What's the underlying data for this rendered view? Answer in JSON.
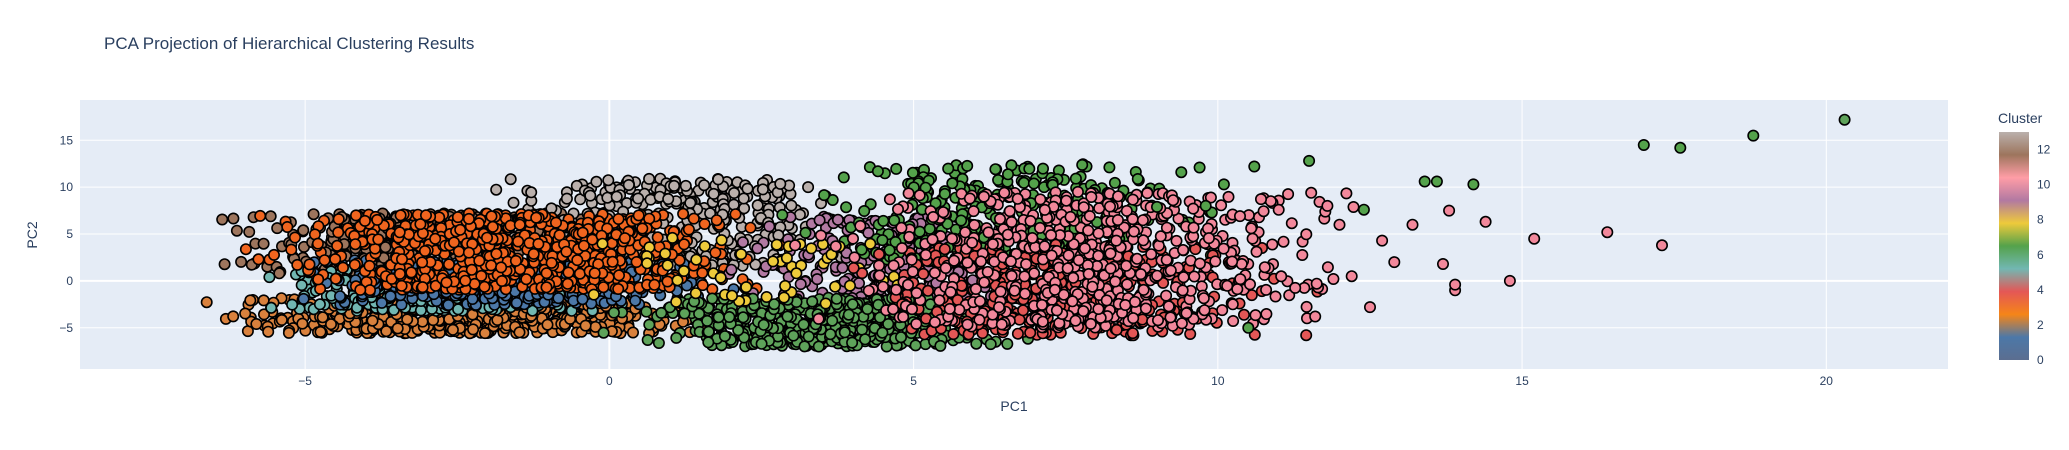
{
  "chart_data": {
    "type": "scatter",
    "title": "PCA Projection of Hierarchical Clustering Results",
    "xlabel": "PC1",
    "ylabel": "PC2",
    "xlim": [
      -8.7,
      22.0
    ],
    "ylim": [
      -9.4,
      19.3
    ],
    "x_ticks": [
      -5,
      0,
      5,
      10,
      15,
      20
    ],
    "y_ticks": [
      -5,
      0,
      5,
      10,
      15
    ],
    "x_tick_labels": [
      "−5",
      "0",
      "5",
      "10",
      "15",
      "20"
    ],
    "y_tick_labels": [
      "−5",
      "0",
      "5",
      "10",
      "15"
    ],
    "grid": true,
    "marker": {
      "outline": "#000000",
      "shape": "circle"
    },
    "colorbar": {
      "title": "Cluster",
      "range": [
        0,
        13
      ],
      "ticks": [
        0,
        2,
        4,
        6,
        8,
        10,
        12
      ],
      "tick_labels": [
        "0",
        "2",
        "4",
        "6",
        "8",
        "10",
        "12"
      ],
      "colorscale": [
        "#5b6e90",
        "#4c78a8",
        "#f58518",
        "#e45756",
        "#72b7b2",
        "#54a24b",
        "#eeca3b",
        "#b279a2",
        "#ff9da6",
        "#9d755d",
        "#bab0ac"
      ]
    },
    "cluster_colors": {
      "0": "#5b6e90",
      "1": "#4c78a8",
      "2": "#d9813d",
      "3": "#f0651f",
      "4": "#e45756",
      "5": "#72b7b2",
      "6": "#5ea35a",
      "7": "#54a24b",
      "8": "#eeca3b",
      "9": "#b279a2",
      "10": "#f2889b",
      "11": "#ff9da6",
      "12": "#9d755d",
      "13": "#bab0ac"
    },
    "points": [
      {
        "x": 20.3,
        "y": 17.2,
        "cluster": 6
      },
      {
        "x": 18.8,
        "y": 15.5,
        "cluster": 7
      },
      {
        "x": 17.0,
        "y": 14.5,
        "cluster": 7
      },
      {
        "x": 17.6,
        "y": 14.2,
        "cluster": 7
      },
      {
        "x": 17.3,
        "y": 3.8,
        "cluster": 10
      },
      {
        "x": 16.4,
        "y": 5.2,
        "cluster": 10
      },
      {
        "x": 15.2,
        "y": 4.5,
        "cluster": 10
      },
      {
        "x": 14.8,
        "y": 0.0,
        "cluster": 10
      },
      {
        "x": 14.4,
        "y": 6.3,
        "cluster": 10
      },
      {
        "x": 14.2,
        "y": 10.3,
        "cluster": 7
      },
      {
        "x": 13.9,
        "y": -1.0,
        "cluster": 10
      },
      {
        "x": 13.9,
        "y": -0.4,
        "cluster": 10
      },
      {
        "x": 13.6,
        "y": 10.6,
        "cluster": 7
      },
      {
        "x": 13.4,
        "y": 10.6,
        "cluster": 7
      },
      {
        "x": 13.7,
        "y": 1.8,
        "cluster": 10
      },
      {
        "x": 13.8,
        "y": 7.5,
        "cluster": 10
      },
      {
        "x": 13.2,
        "y": 6.0,
        "cluster": 10
      },
      {
        "x": 12.9,
        "y": 2.0,
        "cluster": 10
      },
      {
        "x": 12.7,
        "y": 4.3,
        "cluster": 10
      },
      {
        "x": 12.5,
        "y": -2.8,
        "cluster": 10
      },
      {
        "x": 12.2,
        "y": 0.5,
        "cluster": 10
      },
      {
        "x": 11.9,
        "y": 0.2,
        "cluster": 10
      },
      {
        "x": 12.0,
        "y": 6.0,
        "cluster": 10
      },
      {
        "x": 11.5,
        "y": 12.8,
        "cluster": 7
      },
      {
        "x": 11.8,
        "y": 8.0,
        "cluster": 10
      },
      {
        "x": 11.6,
        "y": -3.8,
        "cluster": 10
      },
      {
        "x": 12.4,
        "y": 7.6,
        "cluster": 7
      },
      {
        "x": 10.6,
        "y": 12.2,
        "cluster": 7
      },
      {
        "x": 10.1,
        "y": 10.3,
        "cluster": 7
      },
      {
        "x": 9.9,
        "y": 7.3,
        "cluster": 7
      },
      {
        "x": 9.7,
        "y": 12.1,
        "cluster": 7
      },
      {
        "x": 9.4,
        "y": 11.6,
        "cluster": 7
      },
      {
        "x": 10.5,
        "y": -5.0,
        "cluster": 7
      },
      {
        "x": 9.8,
        "y": 8.0,
        "cluster": 7
      },
      {
        "x": 9.0,
        "y": 7.9,
        "cluster": 7
      }
    ],
    "clouds": [
      {
        "cluster": 12,
        "n": 520,
        "xmin": -6.9,
        "xmax": 1.8,
        "ymin": 0.8,
        "ymax": 7.2
      },
      {
        "cluster": 2,
        "n": 700,
        "xmin": -7.0,
        "xmax": 2.4,
        "ymin": -5.6,
        "ymax": -1.8
      },
      {
        "cluster": 13,
        "n": 360,
        "xmin": -2.5,
        "xmax": 4.6,
        "ymin": 1.5,
        "ymax": 11.0
      },
      {
        "cluster": 5,
        "n": 300,
        "xmin": -6.5,
        "xmax": 1.0,
        "ymin": -3.2,
        "ymax": 1.5
      },
      {
        "cluster": 1,
        "n": 380,
        "xmin": -6.0,
        "xmax": 2.5,
        "ymin": -2.6,
        "ymax": 2.2
      },
      {
        "cluster": 3,
        "n": 720,
        "xmin": -6.5,
        "xmax": 3.5,
        "ymin": -1.0,
        "ymax": 7.2
      },
      {
        "cluster": 9,
        "n": 280,
        "xmin": 1.5,
        "xmax": 8.0,
        "ymin": -2.5,
        "ymax": 7.0
      },
      {
        "cluster": 7,
        "n": 320,
        "xmin": 2.5,
        "xmax": 10.5,
        "ymin": 2.0,
        "ymax": 12.5
      },
      {
        "cluster": 6,
        "n": 560,
        "xmin": -0.5,
        "xmax": 7.8,
        "ymin": -7.0,
        "ymax": -1.8
      },
      {
        "cluster": 8,
        "n": 55,
        "xmin": -2.0,
        "xmax": 7.0,
        "ymin": -3.0,
        "ymax": 5.0
      },
      {
        "cluster": 4,
        "n": 420,
        "xmin": 3.0,
        "xmax": 12.0,
        "ymin": -5.8,
        "ymax": 4.0
      },
      {
        "cluster": 10,
        "n": 640,
        "xmin": 2.8,
        "xmax": 13.0,
        "ymin": -5.0,
        "ymax": 9.5
      }
    ]
  }
}
